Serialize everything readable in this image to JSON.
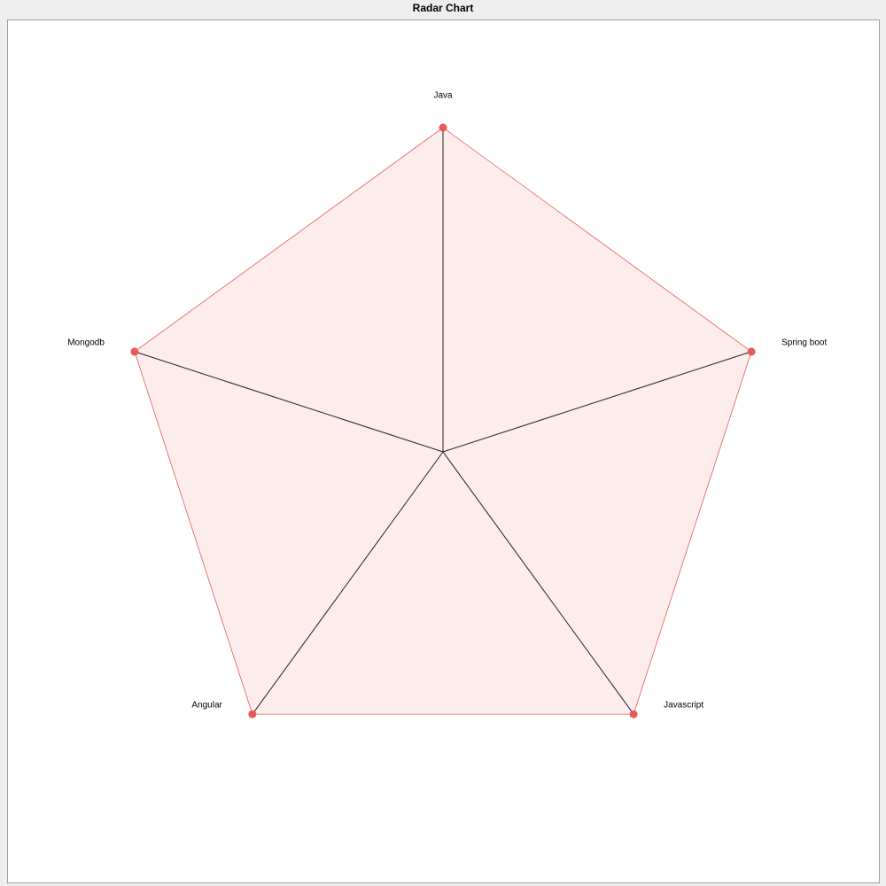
{
  "window": {
    "title": "Radar Chart"
  },
  "colors": {
    "series": "#e85a5a",
    "fill": "#fdecec",
    "axis": "#222222"
  },
  "chart_data": {
    "type": "radar",
    "title": "Radar Chart",
    "axes": [
      "Java",
      "Spring boot",
      "Javascript",
      "Angular",
      "Mongodb"
    ],
    "series": [
      {
        "values": [
          1,
          1,
          1,
          1,
          1
        ]
      }
    ],
    "range": [
      0,
      1
    ],
    "grid": false,
    "legend": "none"
  }
}
